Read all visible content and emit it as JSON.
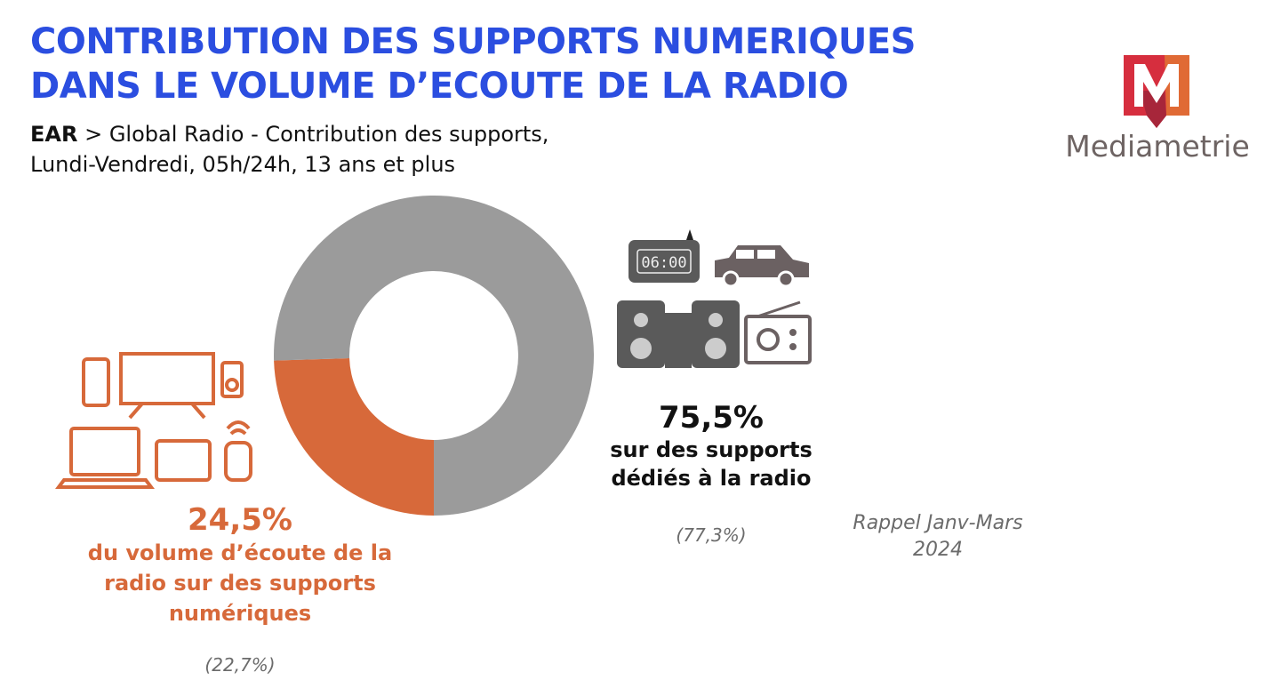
{
  "header": {
    "title_line1": "CONTRIBUTION DES SUPPORTS NUMERIQUES",
    "title_line2": "DANS LE VOLUME D’ECOUTE DE LA RADIO",
    "subtitle_bold": "EAR",
    "subtitle_rest": " > Global Radio - Contribution des supports,",
    "subtitle_line2": "Lundi-Vendredi, 05h/24h, 13 ans et plus"
  },
  "logo": {
    "text": "Mediametrie"
  },
  "chart_data": {
    "type": "pie",
    "donut": true,
    "slices": [
      {
        "label": "sur des supports dédiés à la radio",
        "value": 75.5,
        "color": "#9b9b9b",
        "previous": 77.3
      },
      {
        "label": "du volume d’écoute de la radio sur des supports numériques",
        "value": 24.5,
        "color": "#d7693a",
        "previous": 22.7
      }
    ]
  },
  "labels": {
    "dedicated_value": "75,5%",
    "dedicated_line1": "sur des supports",
    "dedicated_line2": "dédiés à la radio",
    "dedicated_prev": "(77,3%)",
    "digital_value": "24,5%",
    "digital_line1": "du volume d’écoute de la",
    "digital_line2": "radio sur des supports",
    "digital_line3": "numériques",
    "digital_prev": "(22,7%)",
    "reminder_line1": "Rappel Janv-Mars",
    "reminder_line2": "2024",
    "clock_text": "06:00"
  }
}
